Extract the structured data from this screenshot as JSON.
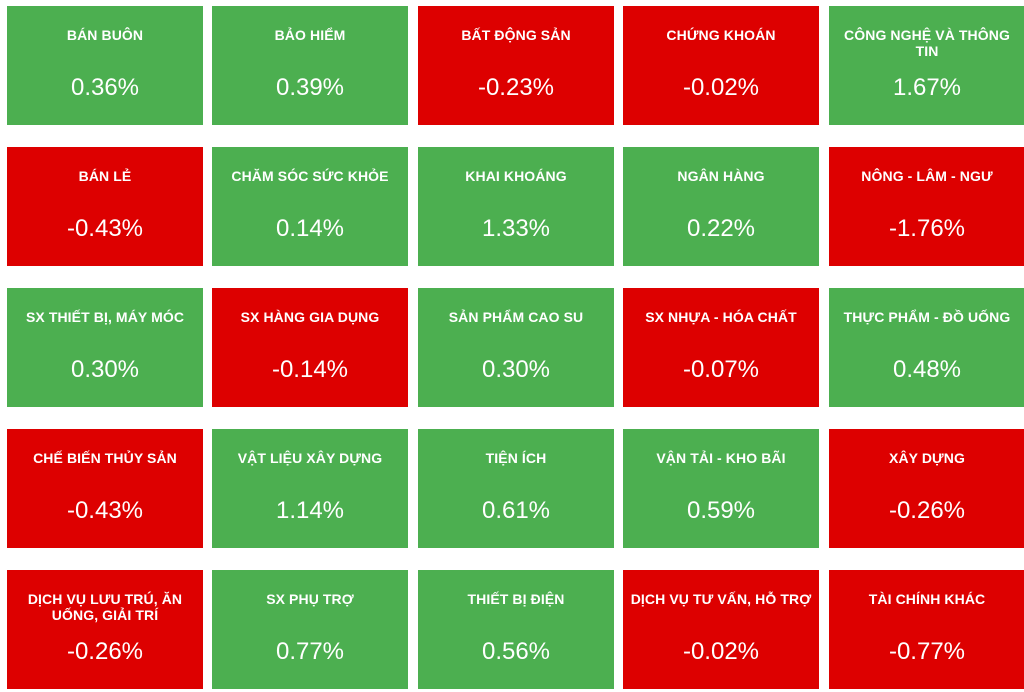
{
  "colors": {
    "up": "#4caf50",
    "down": "#dd0000"
  },
  "tiles": [
    {
      "name": "BÁN BUÔN",
      "value": "0.36%",
      "trend": "up"
    },
    {
      "name": "BẢO HIỂM",
      "value": "0.39%",
      "trend": "up"
    },
    {
      "name": "BẤT ĐỘNG SẢN",
      "value": "-0.23%",
      "trend": "down"
    },
    {
      "name": "CHỨNG KHOÁN",
      "value": "-0.02%",
      "trend": "down"
    },
    {
      "name": "CÔNG NGHỆ VÀ THÔNG TIN",
      "value": "1.67%",
      "trend": "up"
    },
    {
      "name": "BÁN LẺ",
      "value": "-0.43%",
      "trend": "down"
    },
    {
      "name": "CHĂM SÓC SỨC KHỎE",
      "value": "0.14%",
      "trend": "up"
    },
    {
      "name": "KHAI KHOÁNG",
      "value": "1.33%",
      "trend": "up"
    },
    {
      "name": "NGÂN HÀNG",
      "value": "0.22%",
      "trend": "up"
    },
    {
      "name": "NÔNG - LÂM - NGƯ",
      "value": "-1.76%",
      "trend": "down"
    },
    {
      "name": "SX THIẾT BỊ, MÁY MÓC",
      "value": "0.30%",
      "trend": "up"
    },
    {
      "name": "SX HÀNG GIA DỤNG",
      "value": "-0.14%",
      "trend": "down"
    },
    {
      "name": "SẢN PHẨM CAO SU",
      "value": "0.30%",
      "trend": "up"
    },
    {
      "name": "SX NHỰA - HÓA CHẤT",
      "value": "-0.07%",
      "trend": "down"
    },
    {
      "name": "THỰC PHẨM - ĐỒ UỐNG",
      "value": "0.48%",
      "trend": "up"
    },
    {
      "name": "CHẾ BIẾN THỦY SẢN",
      "value": "-0.43%",
      "trend": "down"
    },
    {
      "name": "VẬT LIỆU XÂY DỰNG",
      "value": "1.14%",
      "trend": "up"
    },
    {
      "name": "TIỆN ÍCH",
      "value": "0.61%",
      "trend": "up"
    },
    {
      "name": "VẬN TẢI - KHO BÃI",
      "value": "0.59%",
      "trend": "up"
    },
    {
      "name": "XÂY DỰNG",
      "value": "-0.26%",
      "trend": "down"
    },
    {
      "name": "DỊCH VỤ LƯU TRÚ, ĂN UỐNG, GIẢI TRÍ",
      "value": "-0.26%",
      "trend": "down"
    },
    {
      "name": "SX PHỤ TRỢ",
      "value": "0.77%",
      "trend": "up"
    },
    {
      "name": "THIẾT BỊ ĐIỆN",
      "value": "0.56%",
      "trend": "up"
    },
    {
      "name": "DỊCH VỤ TƯ VẤN, HỖ TRỢ",
      "value": "-0.02%",
      "trend": "down"
    },
    {
      "name": "TÀI CHÍNH KHÁC",
      "value": "-0.77%",
      "trend": "down"
    }
  ]
}
